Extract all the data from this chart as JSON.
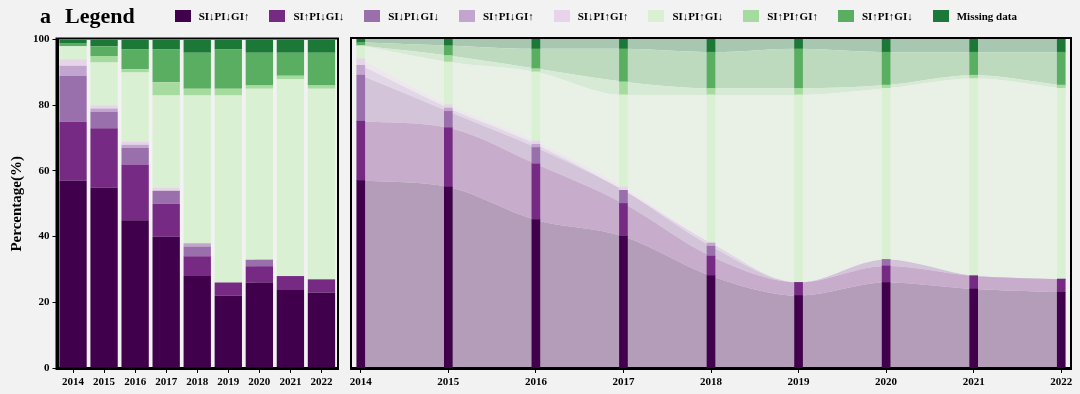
{
  "chart_data": [
    {
      "type": "bar",
      "stacked": true,
      "legend": "top",
      "legend_title": "Legend",
      "annotations": [
        "a"
      ],
      "ylabel": "Percentage(%)",
      "categories": [
        "2014",
        "2015",
        "2016",
        "2017",
        "2018",
        "2019",
        "2020",
        "2021",
        "2022"
      ],
      "ylim": [
        0,
        100
      ],
      "yticks": [
        0,
        20,
        40,
        60,
        80,
        100
      ],
      "grid": false,
      "series": [
        {
          "name": "SI↓PI↓GI↑",
          "color": "#40004b",
          "values": [
            57,
            55,
            45,
            40,
            28,
            22,
            26,
            24,
            23
          ]
        },
        {
          "name": "SI↑PI↓GI↓",
          "color": "#762a83",
          "values": [
            18,
            18,
            17,
            10,
            6,
            4,
            5,
            4,
            4
          ]
        },
        {
          "name": "SI↓PI↓GI↓",
          "color": "#9970ab",
          "values": [
            14,
            5,
            5,
            4,
            3,
            0,
            2,
            0,
            0
          ]
        },
        {
          "name": "SI↑PI↓GI↑",
          "color": "#c2a5cf",
          "values": [
            3,
            1,
            1,
            null,
            1,
            0,
            0,
            0,
            0
          ]
        },
        {
          "name": "SI↓PI↑GI↑",
          "color": "#e7d4e8",
          "values": [
            2,
            1,
            1,
            1,
            0,
            0,
            0,
            0,
            0
          ]
        },
        {
          "name": "SI↓PI↑GI↓",
          "color": "#d9f0d3",
          "values": [
            4,
            13,
            21,
            28,
            45,
            57,
            52,
            60,
            58
          ]
        },
        {
          "name": "SI↑PI↑GI↑",
          "color": "#a6dba0",
          "values": [
            null,
            2,
            1,
            4,
            2,
            2,
            1,
            1,
            1
          ]
        },
        {
          "name": "SI↑PI↑GI↓",
          "color": "#5aae61",
          "values": [
            1,
            3,
            6,
            10,
            11,
            12,
            10,
            7,
            10
          ]
        },
        {
          "name": "Missing data",
          "color": "#1b7837",
          "values": [
            1,
            2,
            3,
            3,
            4,
            3,
            4,
            4,
            4
          ]
        }
      ]
    },
    {
      "type": "area",
      "stacked": true,
      "legend": false,
      "tick_labels": "x",
      "x": [
        2014,
        2015,
        2016,
        2017,
        2018,
        2019,
        2020,
        2021,
        2022
      ],
      "xlim": [
        2013.9,
        2022.1
      ],
      "xticks": [
        2014,
        2015,
        2016,
        2017,
        2018,
        2019,
        2020,
        2021,
        2022
      ],
      "ylim": [
        0,
        100
      ],
      "grid": false,
      "series": [
        {
          "color": "#b49db8",
          "values": [
            57,
            55,
            45,
            40,
            28,
            22,
            26,
            24,
            23
          ]
        },
        {
          "color": "#c7accb",
          "values": [
            18,
            18,
            17,
            10,
            6,
            4,
            5,
            4,
            4
          ]
        },
        {
          "color": "#d3c4d9",
          "values": [
            14,
            5,
            5,
            4,
            3,
            0,
            2,
            0,
            0
          ]
        },
        {
          "color": "#e1d7e6",
          "values": [
            3,
            1,
            1,
            0,
            1,
            0,
            0,
            0,
            0
          ]
        },
        {
          "color": "#eee8ee",
          "values": [
            2,
            1,
            1,
            1,
            0,
            0,
            0,
            0,
            0
          ]
        },
        {
          "color": "#e9f1e7",
          "values": [
            4,
            13,
            21,
            28,
            45,
            57,
            52,
            60,
            58
          ]
        },
        {
          "color": "#d7ead5",
          "values": [
            0,
            2,
            1,
            4,
            2,
            2,
            1,
            1,
            1
          ]
        },
        {
          "color": "#bddabf",
          "values": [
            1,
            3,
            6,
            10,
            11,
            12,
            10,
            7,
            10
          ]
        },
        {
          "color": "#a7c7b1",
          "values": [
            1,
            2,
            3,
            3,
            4,
            3,
            4,
            4,
            4
          ]
        }
      ]
    },
    {
      "type": "bar",
      "stacked": true,
      "legend": false,
      "tick_labels": false,
      "x": [
        2014,
        2015,
        2016,
        2017,
        2018,
        2019,
        2020,
        2021,
        2022
      ],
      "xlim": [
        2013.9,
        2022.1
      ],
      "ylim": [
        0,
        100
      ],
      "grid": false,
      "series": [
        {
          "color": "#40004b",
          "values": [
            57,
            55,
            45,
            40,
            28,
            22,
            26,
            24,
            23
          ]
        },
        {
          "color": "#762a83",
          "values": [
            18,
            18,
            17,
            10,
            6,
            4,
            5,
            4,
            4
          ]
        },
        {
          "color": "#9970ab",
          "values": [
            14,
            5,
            5,
            4,
            3,
            0,
            2,
            0,
            0
          ]
        },
        {
          "color": "#c2a5cf",
          "values": [
            3,
            1,
            1,
            null,
            1,
            0,
            0,
            0,
            0
          ]
        },
        {
          "color": "#e7d4e8",
          "values": [
            2,
            1,
            1,
            1,
            0,
            0,
            0,
            0,
            0
          ]
        },
        {
          "color": "#d9f0d3",
          "values": [
            4,
            13,
            21,
            28,
            45,
            57,
            52,
            60,
            58
          ]
        },
        {
          "color": "#a6dba0",
          "values": [
            null,
            2,
            1,
            4,
            2,
            2,
            1,
            1,
            1
          ]
        },
        {
          "color": "#5aae61",
          "values": [
            1,
            3,
            6,
            10,
            11,
            12,
            10,
            7,
            10
          ]
        },
        {
          "color": "#1b7837",
          "values": [
            1,
            2,
            3,
            3,
            4,
            3,
            4,
            4,
            4
          ]
        }
      ]
    }
  ]
}
